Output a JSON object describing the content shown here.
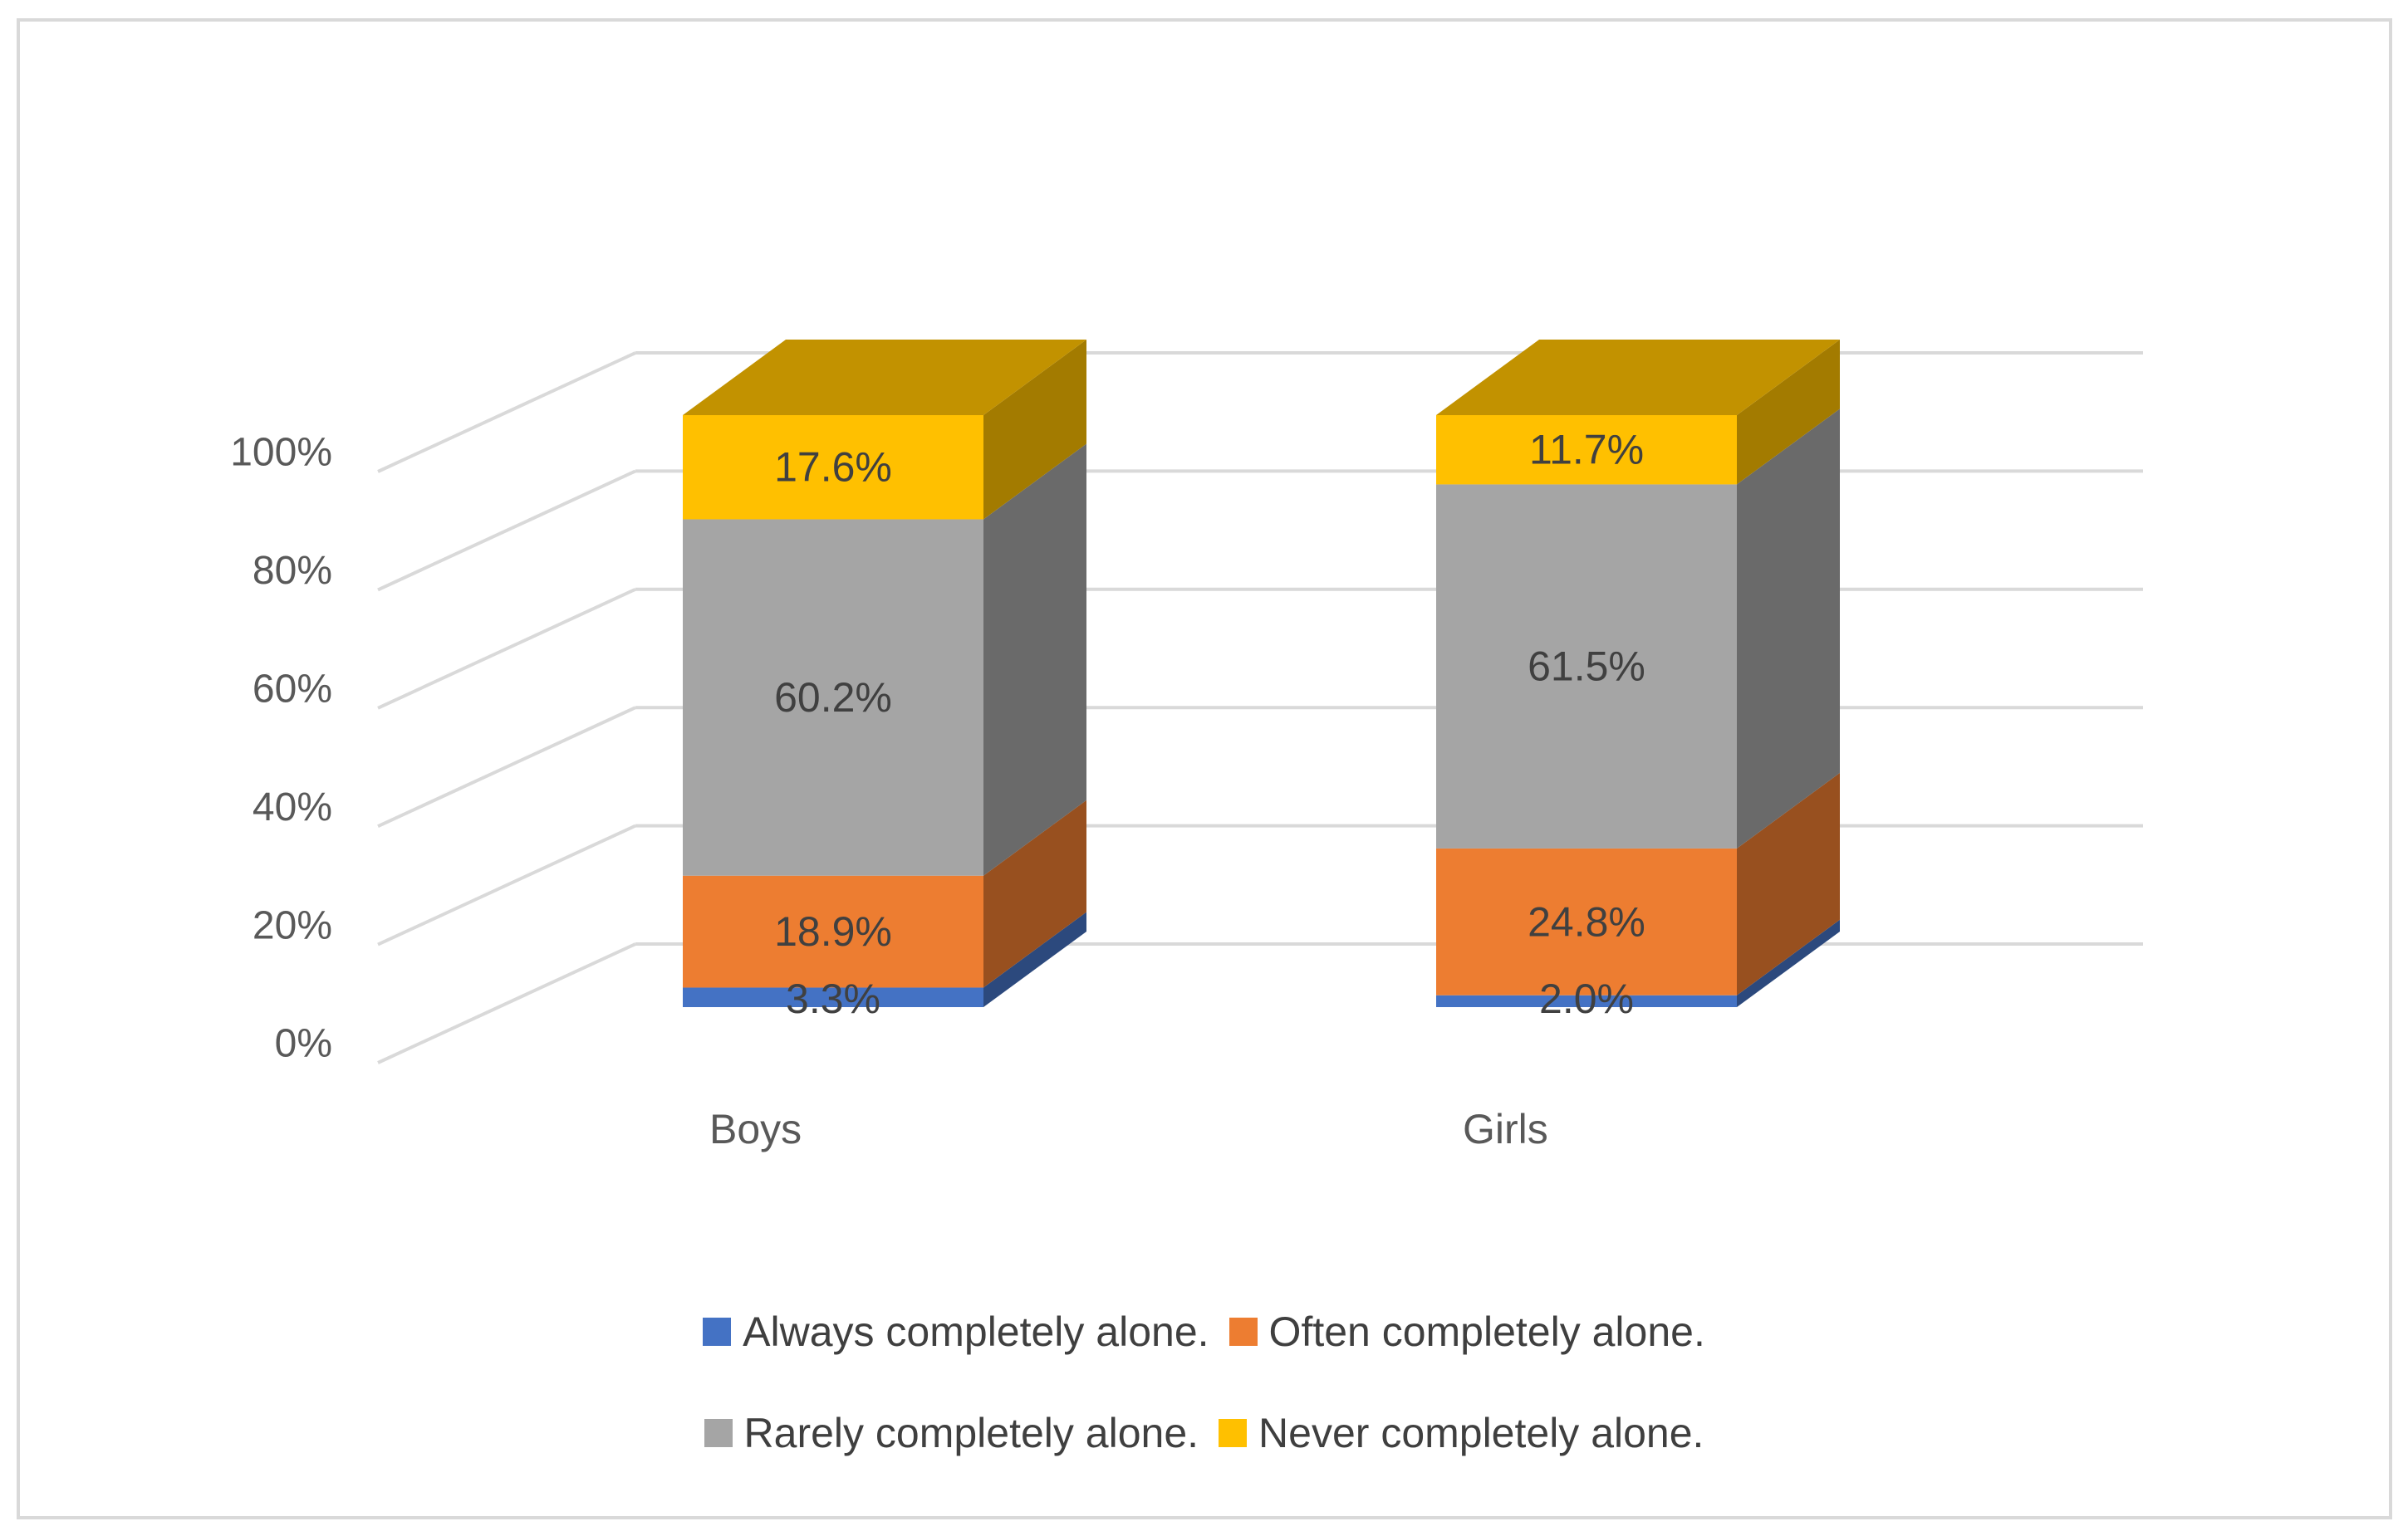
{
  "chart_data": {
    "type": "bar",
    "stacked": true,
    "three_d": true,
    "categories": [
      "Boys",
      "Girls"
    ],
    "series": [
      {
        "name": "Always completely alone.",
        "values": [
          3.3,
          2.0
        ],
        "labels": [
          "3.3%",
          "2.0%"
        ],
        "color": "#4472C4"
      },
      {
        "name": "Often completely alone.",
        "values": [
          18.9,
          24.8
        ],
        "labels": [
          "18.9%",
          "24.8%"
        ],
        "color": "#ED7D31"
      },
      {
        "name": "Rarely completely alone.",
        "values": [
          60.2,
          61.5
        ],
        "labels": [
          "60.2%",
          "61.5%"
        ],
        "color": "#A5A5A5"
      },
      {
        "name": "Never completely alone.",
        "values": [
          17.6,
          11.7
        ],
        "labels": [
          "17.6%",
          "11.7%"
        ],
        "color": "#FFC000"
      }
    ],
    "y_ticks": [
      "0%",
      "20%",
      "40%",
      "60%",
      "80%",
      "100%"
    ],
    "ylim": [
      0,
      100
    ],
    "grid": true,
    "legend_position": "bottom"
  }
}
